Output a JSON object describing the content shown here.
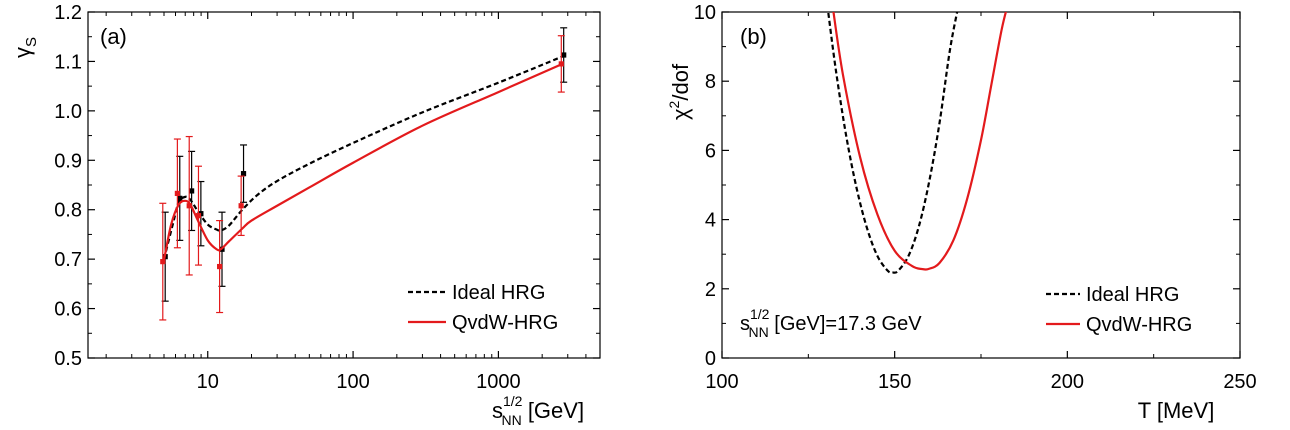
{
  "colors": {
    "ideal": "#000000",
    "qvdw": "#e31a1c"
  },
  "chart_data": [
    {
      "panel_label": "(a)",
      "type": "line",
      "x_scale": "log",
      "xlim": [
        1.5,
        5000
      ],
      "ylim": [
        0.5,
        1.2
      ],
      "xticks": [
        {
          "v": 10,
          "label": "10"
        },
        {
          "v": 100,
          "label": "100"
        },
        {
          "v": 1000,
          "label": "1000"
        }
      ],
      "yticks": [
        {
          "v": 0.5,
          "label": "0.5"
        },
        {
          "v": 0.6,
          "label": "0.6"
        },
        {
          "v": 0.7,
          "label": "0.7"
        },
        {
          "v": 0.8,
          "label": "0.8"
        },
        {
          "v": 0.9,
          "label": "0.9"
        },
        {
          "v": 1.0,
          "label": "1.0"
        },
        {
          "v": 1.1,
          "label": "1.1"
        },
        {
          "v": 1.2,
          "label": "1.2"
        }
      ],
      "xlabel": {
        "main": "s",
        "sub": "NN",
        "sup": "1/2",
        "unit": " [GeV]"
      },
      "ylabel": {
        "main": "γ",
        "sub": "S"
      },
      "legend_position": "bottom-right",
      "series": [
        {
          "name": "Ideal HRG",
          "style": "dashed",
          "color": "#000000",
          "line": {
            "x": [
              5.0,
              5.8,
              6.3,
              7.0,
              7.6,
              8.5,
              10.0,
              11.5,
              12.3,
              14.0,
              17.3,
              22,
              30,
              50,
              100,
              300,
              1000,
              2760
            ],
            "y": [
              0.7,
              0.775,
              0.815,
              0.826,
              0.82,
              0.798,
              0.77,
              0.76,
              0.758,
              0.768,
              0.8,
              0.83,
              0.858,
              0.893,
              0.935,
              0.997,
              1.057,
              1.11
            ]
          },
          "points": {
            "x": [
              5.0,
              6.3,
              7.6,
              8.8,
              12.3,
              17.3,
              2760
            ],
            "y": [
              0.705,
              0.823,
              0.838,
              0.792,
              0.72,
              0.873,
              1.113
            ],
            "err": [
              0.09,
              0.085,
              0.08,
              0.065,
              0.075,
              0.058,
              0.055
            ]
          }
        },
        {
          "name": "QvdW-HRG",
          "style": "solid",
          "color": "#e31a1c",
          "line": {
            "x": [
              5.0,
              5.6,
              6.3,
              7.0,
              7.6,
              8.5,
              10.0,
              11.5,
              12.3,
              14.0,
              17.3,
              20,
              30,
              50,
              100,
              300,
              1000,
              2760
            ],
            "y": [
              0.698,
              0.77,
              0.81,
              0.818,
              0.81,
              0.78,
              0.738,
              0.72,
              0.72,
              0.736,
              0.762,
              0.778,
              0.808,
              0.845,
              0.895,
              0.97,
              1.038,
              1.095
            ]
          },
          "points": {
            "x": [
              5.0,
              6.3,
              7.6,
              8.8,
              12.3,
              17.3,
              2760
            ],
            "y": [
              0.695,
              0.833,
              0.808,
              0.788,
              0.685,
              0.808,
              1.095
            ],
            "err": [
              0.118,
              0.11,
              0.14,
              0.1,
              0.093,
              0.06,
              0.057
            ]
          }
        }
      ]
    },
    {
      "panel_label": "(b)",
      "type": "line",
      "xlim": [
        100,
        250
      ],
      "ylim": [
        0,
        10
      ],
      "xticks": [
        {
          "v": 100,
          "label": "100"
        },
        {
          "v": 150,
          "label": "150"
        },
        {
          "v": 200,
          "label": "200"
        },
        {
          "v": 250,
          "label": "250"
        }
      ],
      "yticks": [
        {
          "v": 0,
          "label": "0"
        },
        {
          "v": 2,
          "label": "2"
        },
        {
          "v": 4,
          "label": "4"
        },
        {
          "v": 6,
          "label": "6"
        },
        {
          "v": 8,
          "label": "8"
        },
        {
          "v": 10,
          "label": "10"
        }
      ],
      "xlabel": {
        "text": "T [MeV]"
      },
      "ylabel": {
        "main": "χ",
        "sup": "2",
        "rest": "/dof"
      },
      "annotation": {
        "main": "s",
        "sub": "NN",
        "sup": "1/2",
        "rest": " [GeV]=17.3 GeV"
      },
      "legend_position": "bottom-right",
      "series": [
        {
          "name": "Ideal HRG",
          "style": "dashed",
          "color": "#000000",
          "line": {
            "x": [
              130.5,
              133,
              136,
              139,
              142,
              145,
              148,
              149.5,
              151,
              154,
              157,
              160,
              163,
              166,
              168.5
            ],
            "y": [
              10.2,
              8.3,
              6.4,
              4.9,
              3.75,
              2.95,
              2.52,
              2.47,
              2.52,
              2.95,
              3.8,
              5.1,
              6.8,
              8.9,
              10.2
            ]
          }
        },
        {
          "name": "QvdW-HRG",
          "style": "solid",
          "color": "#e31a1c",
          "line": {
            "x": [
              132,
              135,
              140,
              145,
              150,
              155,
              158,
              160,
              163,
              167,
              171,
              175,
              178,
              181,
              183
            ],
            "y": [
              10.2,
              8.2,
              5.8,
              4.15,
              3.1,
              2.66,
              2.57,
              2.58,
              2.75,
              3.4,
              4.6,
              6.3,
              7.9,
              9.5,
              10.3
            ]
          }
        }
      ]
    }
  ]
}
